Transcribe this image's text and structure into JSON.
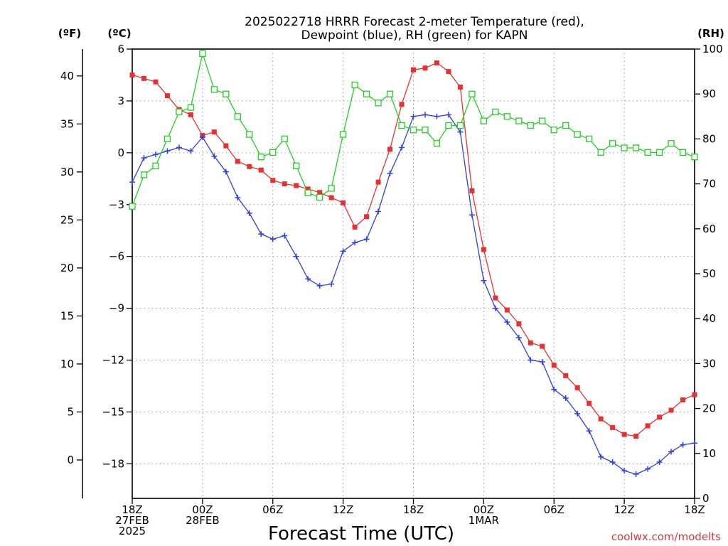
{
  "chart_data": {
    "type": "line",
    "title": [
      "2025022718 HRRR Forecast 2-meter Temperature (red),",
      "Dewpoint (blue), RH (green) for KAPN"
    ],
    "xlabel": "Forecast Time (UTC)",
    "units": {
      "fahrenheit": "(ºF)",
      "celsius": "(ºC)",
      "rh": "(RH)"
    },
    "credit": "coolwx.com/modelts",
    "grid": true,
    "x_forecast_hours": [
      0,
      1,
      2,
      3,
      4,
      5,
      6,
      7,
      8,
      9,
      10,
      11,
      12,
      13,
      14,
      15,
      16,
      17,
      18,
      19,
      20,
      21,
      22,
      23,
      24,
      25,
      26,
      27,
      28,
      29,
      30,
      31,
      32,
      33,
      34,
      35,
      36,
      37,
      38,
      39,
      40,
      41,
      42,
      43,
      44,
      45,
      46,
      47,
      48
    ],
    "x_ticks": [
      {
        "hour": 0,
        "lines": [
          "18Z",
          "27FEB",
          "2025"
        ]
      },
      {
        "hour": 6,
        "lines": [
          "00Z",
          "28FEB"
        ]
      },
      {
        "hour": 12,
        "lines": [
          "06Z"
        ]
      },
      {
        "hour": 18,
        "lines": [
          "12Z"
        ]
      },
      {
        "hour": 24,
        "lines": [
          "18Z"
        ]
      },
      {
        "hour": 30,
        "lines": [
          "00Z",
          "1MAR"
        ]
      },
      {
        "hour": 36,
        "lines": [
          "06Z"
        ]
      },
      {
        "hour": 42,
        "lines": [
          "12Z"
        ]
      },
      {
        "hour": 48,
        "lines": [
          "18Z"
        ]
      }
    ],
    "y_celsius": {
      "range": [
        -20,
        6
      ],
      "ticks": [
        6,
        3,
        0,
        -3,
        -6,
        -9,
        -12,
        -15,
        -18
      ]
    },
    "y_fahrenheit": {
      "ticks": [
        40,
        35,
        30,
        25,
        20,
        15,
        10,
        5,
        0
      ]
    },
    "y_rh": {
      "range": [
        0,
        100
      ],
      "ticks": [
        100,
        90,
        80,
        70,
        60,
        50,
        40,
        30,
        20,
        10,
        0
      ]
    },
    "series": [
      {
        "name": "Temperature",
        "axis": "celsius",
        "color": "#e83030",
        "marker": "filled-square",
        "values": [
          4.5,
          4.3,
          4.1,
          3.3,
          2.5,
          2.2,
          1.0,
          1.2,
          0.4,
          -0.5,
          -0.8,
          -1.0,
          -1.6,
          -1.8,
          -1.9,
          -2.1,
          -2.3,
          -2.6,
          -2.9,
          -4.3,
          -3.7,
          -1.7,
          0.2,
          2.8,
          4.8,
          4.9,
          5.2,
          4.7,
          3.8,
          -2.2,
          -5.6,
          -8.4,
          -9.1,
          -9.9,
          -11.0,
          -11.2,
          -12.3,
          -12.9,
          -13.6,
          -14.5,
          -15.4,
          -15.9,
          -16.3,
          -16.4,
          -15.8,
          -15.3,
          -14.9,
          -14.3,
          -14.0
        ]
      },
      {
        "name": "Dewpoint",
        "axis": "celsius",
        "color": "#2e3ee8",
        "marker": "plus",
        "values": [
          -1.7,
          -0.3,
          -0.1,
          0.1,
          0.3,
          0.1,
          0.9,
          -0.2,
          -1.1,
          -2.6,
          -3.5,
          -4.7,
          -5.0,
          -4.8,
          -6.0,
          -7.3,
          -7.7,
          -7.6,
          -5.7,
          -5.2,
          -5.0,
          -3.4,
          -1.2,
          0.3,
          2.1,
          2.2,
          2.1,
          2.2,
          1.2,
          -3.6,
          -7.4,
          -9.0,
          -9.8,
          -10.7,
          -12.0,
          -12.1,
          -13.7,
          -14.2,
          -15.1,
          -16.1,
          -17.6,
          -17.9,
          -18.4,
          -18.6,
          -18.3,
          -17.9,
          -17.3,
          -16.9,
          -16.8
        ]
      },
      {
        "name": "RH",
        "axis": "rh",
        "color": "#22d022",
        "marker": "open-square",
        "values": [
          65,
          72,
          74,
          80,
          86,
          87,
          99,
          91,
          90,
          85,
          81,
          76,
          77,
          80,
          74,
          68,
          67,
          69,
          81,
          92,
          90,
          88,
          90,
          83,
          82,
          82,
          79,
          83,
          83,
          90,
          84,
          86,
          85,
          84,
          83,
          84,
          82,
          83,
          81,
          80,
          77,
          79,
          78,
          78,
          77,
          77,
          79,
          77,
          76
        ]
      }
    ]
  }
}
